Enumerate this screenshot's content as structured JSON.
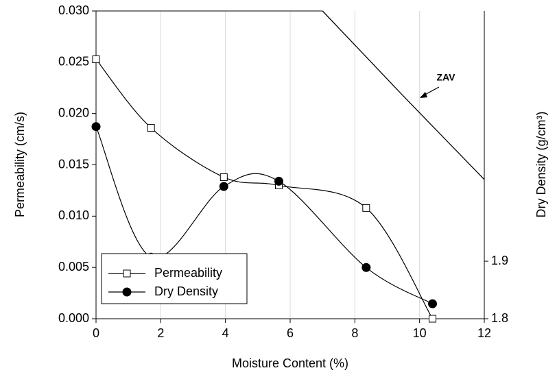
{
  "chart_data": {
    "type": "line",
    "x_label": "Moisture Content (%)",
    "y_label": "Permeability (cm/s)",
    "y2_label": "Dry Density (g/cm³)",
    "x": [
      0,
      1.7,
      3.95,
      5.65,
      8.35,
      10.4
    ],
    "series": [
      {
        "name": "Permeability",
        "color": "#000000",
        "marker": "square",
        "values": [
          0.0253,
          0.0186,
          0.0138,
          0.013,
          0.0108,
          0.0
        ]
      },
      {
        "name": "Dry Density",
        "color": "#000000",
        "marker": "circle",
        "axis": "y2",
        "values": [
          2.134,
          1.907,
          2.03,
          2.039,
          1.889,
          1.826
        ]
      }
    ],
    "zav": {
      "label": "ZAV",
      "x": [
        7,
        9.5,
        12
      ],
      "values": [
        2.335,
        2.187,
        2.042
      ],
      "axis": "y2"
    },
    "xlim": [
      0,
      12
    ],
    "xticks": [
      0,
      2,
      4,
      6,
      8,
      10,
      12
    ],
    "ylim": [
      0,
      0.03
    ],
    "yticks": [
      {
        "value": 0,
        "label": "0.000"
      },
      {
        "value": 0.005,
        "label": "0.005"
      },
      {
        "value": 0.01,
        "label": "0.010"
      },
      {
        "value": 0.015,
        "label": "0.015"
      },
      {
        "value": 0.02,
        "label": "0.020"
      },
      {
        "value": 0.025,
        "label": "0.025"
      },
      {
        "value": 0.03,
        "label": "0.030"
      }
    ],
    "y2lim": [
      1.8,
      2.335
    ],
    "y2ticks": [
      1.8,
      1.9
    ],
    "grid": true,
    "legend": "lower left"
  }
}
